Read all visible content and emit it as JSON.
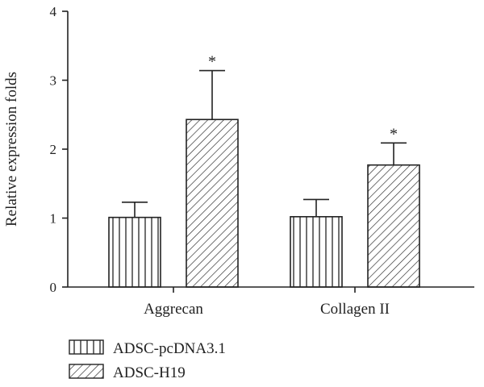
{
  "chart_data": {
    "type": "bar",
    "categories": [
      "Aggrecan",
      "Collagen II"
    ],
    "series": [
      {
        "name": "ADSC-pcDNA3.1",
        "values": [
          1.01,
          1.02
        ],
        "errors": [
          0.22,
          0.25
        ],
        "pattern": "vertical-lines"
      },
      {
        "name": "ADSC-H19",
        "values": [
          2.43,
          1.77
        ],
        "errors": [
          0.71,
          0.32
        ],
        "pattern": "diagonal-hatch"
      }
    ],
    "significance": [
      {
        "category": "Aggrecan",
        "series": "ADSC-H19",
        "label": "*"
      },
      {
        "category": "Collagen II",
        "series": "ADSC-H19",
        "label": "*"
      }
    ],
    "ylabel": "Relative expression folds",
    "xlabel": "",
    "title": "",
    "ylim": [
      0,
      4
    ],
    "yticks": [
      0,
      1,
      2,
      3,
      4
    ],
    "grid": false,
    "legend_position": "bottom-left",
    "colors": {
      "stroke": "#222222",
      "fill": "#ffffff"
    }
  }
}
